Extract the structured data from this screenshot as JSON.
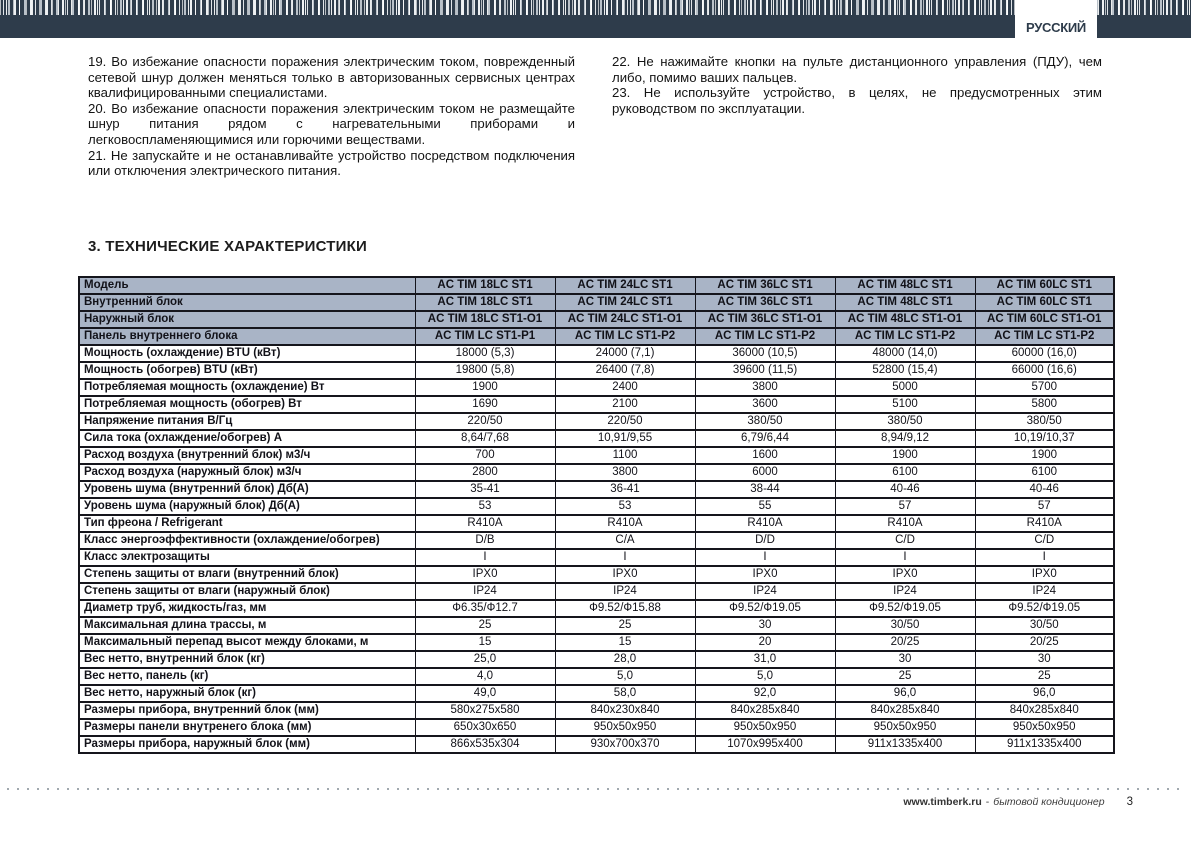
{
  "header": {
    "language_label": "РУССКИЙ"
  },
  "instructions": {
    "left_column": [
      "19. Во избежание опасности поражения электрическим током, поврежденный сетевой шнур должен меняться только в авторизованных сервисных центрах квалифицированными специалистами.",
      "20. Во избежание опасности поражения электрическим током не размещайте шнур питания рядом с нагревательными приборами и легковоспламеняющимися или горючими веществами.",
      "21. Не запускайте и не останавливайте устройство посредством подключения или отключения электрического питания."
    ],
    "right_column": [
      "22. Не нажимайте кнопки на пульте дистанционного управления (ПДУ), чем либо, помимо ваших пальцев.",
      "23. Не используйте устройство, в целях, не предусмотренных этим руководством по эксплуатации."
    ]
  },
  "section_title": "3. ТЕХНИЧЕСКИЕ ХАРАКТЕРИСТИКИ",
  "spec_table": {
    "rows": [
      {
        "header": true,
        "label": "Модель",
        "values": [
          "AC TIM 18LC ST1",
          "AC TIM 24LC ST1",
          "AC TIM 36LC ST1",
          "AC TIM 48LC ST1",
          "AC TIM 60LC ST1"
        ]
      },
      {
        "header": true,
        "label": "Внутренний блок",
        "values": [
          "AC TIM 18LC ST1",
          "AC TIM 24LC ST1",
          "AC TIM 36LC ST1",
          "AC TIM 48LC ST1",
          "AC TIM 60LC ST1"
        ]
      },
      {
        "header": true,
        "label": "Наружный блок",
        "values": [
          "AC TIM 18LC ST1-O1",
          "AC TIM 24LC ST1-O1",
          "AC TIM 36LC ST1-O1",
          "AC TIM 48LC ST1-O1",
          "AC TIM 60LC ST1-O1"
        ]
      },
      {
        "header": true,
        "label": "Панель внутреннего блока",
        "values": [
          "AC TIM LC ST1-P1",
          "AC TIM LC ST1-P2",
          "AC TIM LC ST1-P2",
          "AC TIM LC ST1-P2",
          "AC TIM LC ST1-P2"
        ]
      },
      {
        "header": false,
        "label": "Мощность (охлаждение) BTU (кВт)",
        "values": [
          "18000 (5,3)",
          "24000 (7,1)",
          "36000 (10,5)",
          "48000 (14,0)",
          "60000 (16,0)"
        ]
      },
      {
        "header": false,
        "label": "Мощность (обогрев) BTU (кВт)",
        "values": [
          "19800 (5,8)",
          "26400 (7,8)",
          "39600 (11,5)",
          "52800 (15,4)",
          "66000 (16,6)"
        ]
      },
      {
        "header": false,
        "label": "Потребляемая мощность (охлаждение) Вт",
        "values": [
          "1900",
          "2400",
          "3800",
          "5000",
          "5700"
        ]
      },
      {
        "header": false,
        "label": "Потребляемая мощность (обогрев) Вт",
        "values": [
          "1690",
          "2100",
          "3600",
          "5100",
          "5800"
        ]
      },
      {
        "header": false,
        "label": "Напряжение питания В/Гц",
        "values": [
          "220/50",
          "220/50",
          "380/50",
          "380/50",
          "380/50"
        ]
      },
      {
        "header": false,
        "label": "Сила тока (охлаждение/обогрев) А",
        "values": [
          "8,64/7,68",
          "10,91/9,55",
          "6,79/6,44",
          "8,94/9,12",
          "10,19/10,37"
        ]
      },
      {
        "header": false,
        "label": "Расход воздуха (внутренний блок) м3/ч",
        "values": [
          "700",
          "1100",
          "1600",
          "1900",
          "1900"
        ]
      },
      {
        "header": false,
        "label": "Расход воздуха (наружный блок) м3/ч",
        "values": [
          "2800",
          "3800",
          "6000",
          "6100",
          "6100"
        ]
      },
      {
        "header": false,
        "label": "Уровень шума (внутренний блок) Дб(А)",
        "values": [
          "35-41",
          "36-41",
          "38-44",
          "40-46",
          "40-46"
        ]
      },
      {
        "header": false,
        "label": "Уровень шума (наружный блок) Дб(А)",
        "values": [
          "53",
          "53",
          "55",
          "57",
          "57"
        ]
      },
      {
        "header": false,
        "label": "Тип фреона / Refrigerant",
        "values": [
          "R410A",
          "R410A",
          "R410A",
          "R410A",
          "R410A"
        ]
      },
      {
        "header": false,
        "label": "Класс энергоэффективности (охлаждение/обогрев)",
        "values": [
          "D/B",
          "C/A",
          "D/D",
          "C/D",
          "C/D"
        ]
      },
      {
        "header": false,
        "label": "Класс электрозащиты",
        "values": [
          "I",
          "I",
          "I",
          "I",
          "I"
        ]
      },
      {
        "header": false,
        "label": "Степень защиты от влаги (внутренний блок)",
        "values": [
          "IPX0",
          "IPX0",
          "IPX0",
          "IPX0",
          "IPX0"
        ]
      },
      {
        "header": false,
        "label": "Степень защиты от влаги (наружный блок)",
        "values": [
          "IP24",
          "IP24",
          "IP24",
          "IP24",
          "IP24"
        ]
      },
      {
        "header": false,
        "label": "Диаметр труб, жидкость/газ, мм",
        "values": [
          "Ф6.35/Ф12.7",
          "Ф9.52/Ф15.88",
          "Ф9.52/Ф19.05",
          "Ф9.52/Ф19.05",
          "Ф9.52/Ф19.05"
        ]
      },
      {
        "header": false,
        "label": "Максимальная длина трассы, м",
        "values": [
          "25",
          "25",
          "30",
          "30/50",
          "30/50"
        ]
      },
      {
        "header": false,
        "label": "Максимальный перепад высот между блоками, м",
        "values": [
          "15",
          "15",
          "20",
          "20/25",
          "20/25"
        ]
      },
      {
        "header": false,
        "label": "Вес нетто, внутренний блок (кг)",
        "values": [
          "25,0",
          "28,0",
          "31,0",
          "30",
          "30"
        ]
      },
      {
        "header": false,
        "label": "Вес нетто, панель (кг)",
        "values": [
          "4,0",
          "5,0",
          "5,0",
          "25",
          "25"
        ]
      },
      {
        "header": false,
        "label": "Вес нетто, наружный блок (кг)",
        "values": [
          "49,0",
          "58,0",
          "92,0",
          "96,0",
          "96,0"
        ]
      },
      {
        "header": false,
        "label": "Размеры прибора, внутренний блок (мм)",
        "values": [
          "580x275x580",
          "840x230x840",
          "840x285x840",
          "840x285x840",
          "840x285x840"
        ]
      },
      {
        "header": false,
        "label": "Размеры панели внутренего блока (мм)",
        "values": [
          "650x30x650",
          "950x50x950",
          "950x50x950",
          "950x50x950",
          "950x50x950"
        ]
      },
      {
        "header": false,
        "label": "Размеры прибора, наружный блок (мм)",
        "values": [
          "866x535x304",
          "930x700x370",
          "1070x995x400",
          "911x1335x400",
          "911x1335x400"
        ]
      }
    ]
  },
  "footer": {
    "website": "www.timberk.ru",
    "separator": "-",
    "tagline": "бытовой кондиционер",
    "page_number": "3"
  },
  "colors": {
    "header_bar": "#2e3c4b",
    "table_header_bg": "#a9b4c6",
    "text_ink": "#1a1a1a"
  }
}
